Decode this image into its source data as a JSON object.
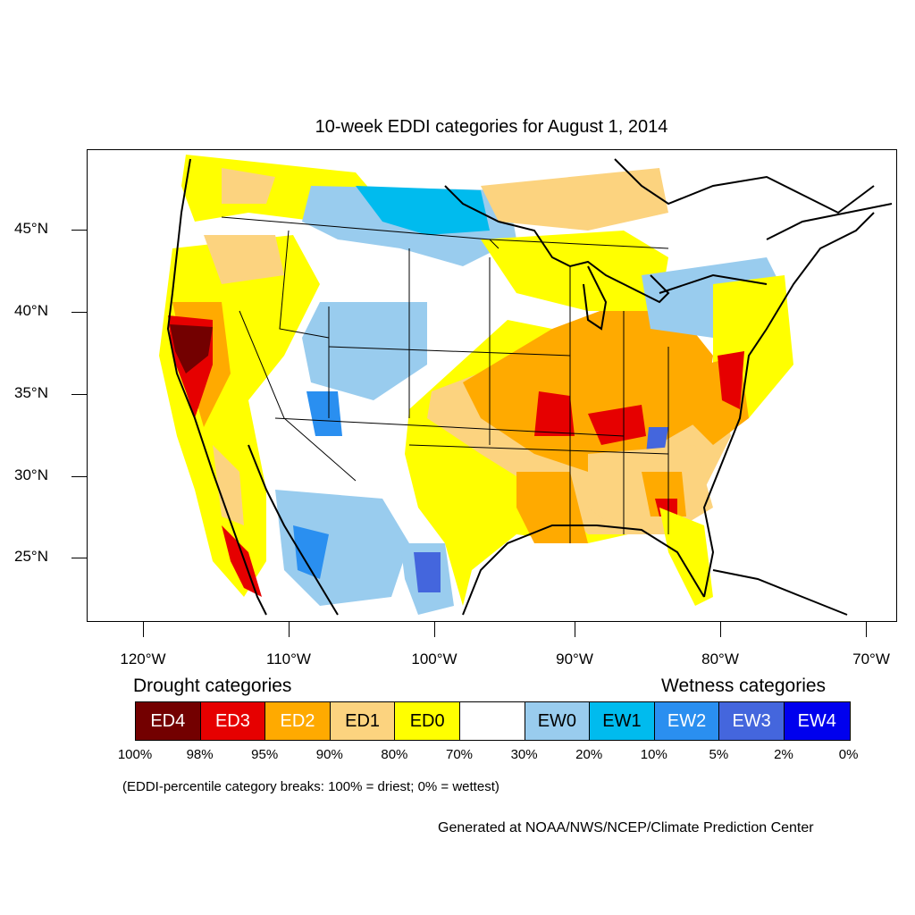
{
  "title": "10-week EDDI categories for August 1, 2014",
  "y_ticks": [
    "45°N",
    "40°N",
    "35°N",
    "30°N",
    "25°N"
  ],
  "x_ticks": [
    "120°W",
    "110°W",
    "100°W",
    "90°W",
    "80°W",
    "70°W"
  ],
  "legend": {
    "drought_heading": "Drought categories",
    "wetness_heading": "Wetness categories",
    "categories": [
      {
        "label": "ED4",
        "color": "#730000",
        "text_color": "#ffffff"
      },
      {
        "label": "ED3",
        "color": "#e60000",
        "text_color": "#ffffff"
      },
      {
        "label": "ED2",
        "color": "#ffaa00",
        "text_color": "#ffffff"
      },
      {
        "label": "ED1",
        "color": "#fcd37f",
        "text_color": "#000000"
      },
      {
        "label": "ED0",
        "color": "#ffff00",
        "text_color": "#000000"
      },
      {
        "label": "",
        "color": "#ffffff",
        "text_color": "#000000"
      },
      {
        "label": "EW0",
        "color": "#99ccee",
        "text_color": "#000000"
      },
      {
        "label": "EW1",
        "color": "#00bbee",
        "text_color": "#000000"
      },
      {
        "label": "EW2",
        "color": "#2a8ff0",
        "text_color": "#ffffff"
      },
      {
        "label": "EW3",
        "color": "#4466dd",
        "text_color": "#ffffff"
      },
      {
        "label": "EW4",
        "color": "#0000ee",
        "text_color": "#ffffff"
      }
    ],
    "breaks": [
      "100%",
      "98%",
      "95%",
      "90%",
      "80%",
      "70%",
      "30%",
      "20%",
      "10%",
      "5%",
      "2%",
      "0%"
    ]
  },
  "note": "(EDDI-percentile category breaks: 100% = driest; 0% = wettest)",
  "credit": "Generated at NOAA/NWS/NCEP/Climate Prediction Center"
}
